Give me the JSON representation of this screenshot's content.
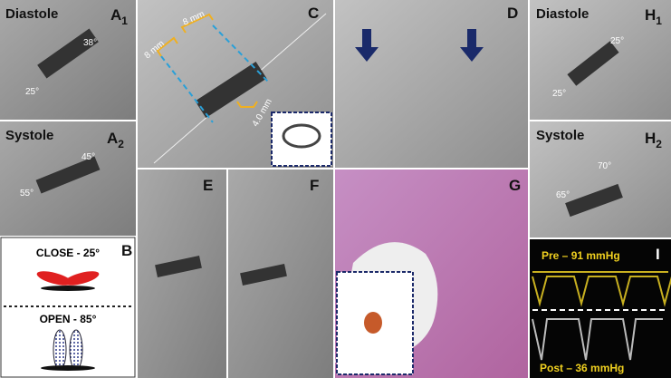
{
  "panels": {
    "a1": {
      "label": "A",
      "sub": "1",
      "phase": "Diastole",
      "angle_top": "38°",
      "angle_bottom": "25°"
    },
    "a2": {
      "label": "A",
      "sub": "2",
      "phase": "Systole",
      "angle_top": "45°",
      "angle_bottom": "55°"
    },
    "b": {
      "label": "B",
      "close": "CLOSE - 25°",
      "open": "OPEN - 85°"
    },
    "c": {
      "label": "C",
      "dim_left": "8 mm",
      "dim_top": "8 mm",
      "dim_bottom": "4.0 mm"
    },
    "d": {
      "label": "D"
    },
    "e": {
      "label": "E"
    },
    "f": {
      "label": "F"
    },
    "g": {
      "label": "G"
    },
    "h1": {
      "label": "H",
      "sub": "1",
      "phase": "Diastole",
      "angle_top": "25°",
      "angle_bottom": "25°"
    },
    "h2": {
      "label": "H",
      "sub": "2",
      "phase": "Systole",
      "angle_top": "70°",
      "angle_bottom": "65°"
    },
    "i": {
      "label": "I",
      "pre": "Pre – 91 mmHg",
      "post": "Post – 36 mmHg"
    }
  }
}
